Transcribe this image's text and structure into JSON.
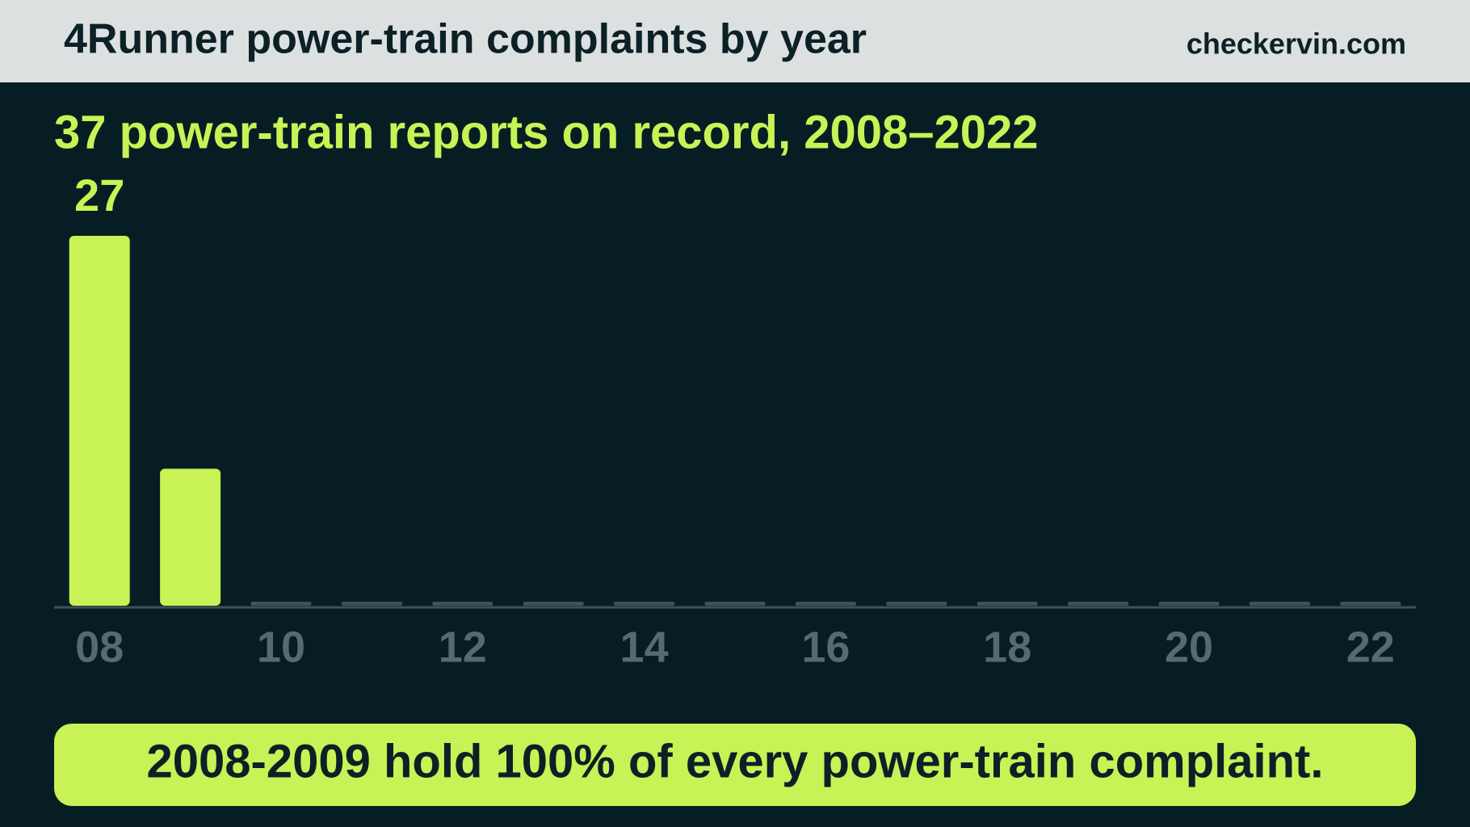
{
  "chart_data": {
    "type": "bar",
    "title": "4Runner power-train complaints by year",
    "source": "checkervin.com",
    "subtitle": "37 power-train reports on record, 2008–2022",
    "categories": [
      "08",
      null,
      "10",
      null,
      "12",
      null,
      "14",
      null,
      "16",
      null,
      "18",
      null,
      "20",
      null,
      "22"
    ],
    "values": [
      27,
      10,
      0,
      0,
      0,
      0,
      0,
      0,
      0,
      0,
      0,
      0,
      0,
      0,
      0
    ],
    "color": "#c8f255",
    "zero_color": "#3d5358",
    "data_labels": "max",
    "callout": "2008-2009 hold 100% of every power-train complaint."
  }
}
